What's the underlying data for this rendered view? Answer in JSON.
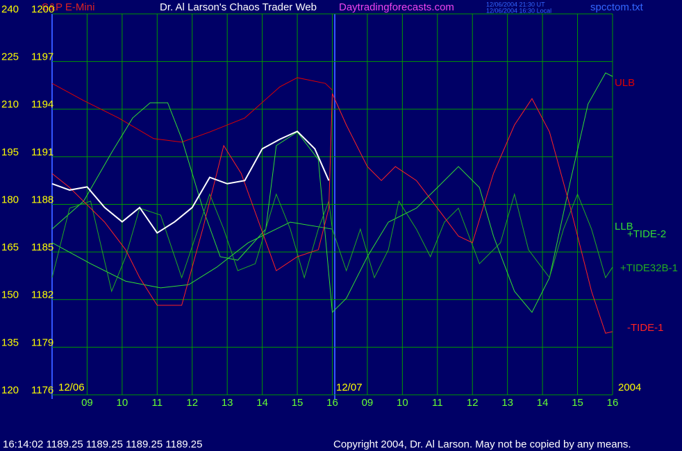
{
  "chart_data": {
    "type": "line",
    "title": "Dr. Al Larson's Chaos Trader Web",
    "symbol": "S&P E-Mini",
    "site": "Daytradingforecasts.com",
    "timestamps": [
      "12/06/2004 21:30 UT",
      "12/06/2004 16:30 Local"
    ],
    "file": "spcctom.txt",
    "dates": [
      "12/06",
      "12/07",
      "2004"
    ],
    "status": "16:14:02  1189.25 1189.25 1189.25 1189.25",
    "copyright": "Copyright 2004, Dr. Al Larson. May not be copied by any means.",
    "grid": true,
    "ylim": [
      120,
      240
    ],
    "yticks": [
      120,
      135,
      150,
      165,
      180,
      195,
      210,
      225,
      240
    ],
    "y2lim": [
      1176,
      1200
    ],
    "y2ticks": [
      1176,
      1179,
      1182,
      1185,
      1188,
      1191,
      1194,
      1197,
      1200
    ],
    "xlim": [
      0,
      16
    ],
    "xticks": [
      {
        "value": 1,
        "label": "09"
      },
      {
        "value": 2,
        "label": "10"
      },
      {
        "value": 3,
        "label": "11"
      },
      {
        "value": 4,
        "label": "12"
      },
      {
        "value": 5,
        "label": "13"
      },
      {
        "value": 6,
        "label": "14"
      },
      {
        "value": 7,
        "label": "15"
      },
      {
        "value": 8,
        "label": "16"
      },
      {
        "value": 9,
        "label": "09"
      },
      {
        "value": 10,
        "label": "10"
      },
      {
        "value": 11,
        "label": "11"
      },
      {
        "value": 12,
        "label": "12"
      },
      {
        "value": 13,
        "label": "13"
      },
      {
        "value": 14,
        "label": "14"
      },
      {
        "value": 15,
        "label": "15"
      },
      {
        "value": 16,
        "label": "16"
      }
    ],
    "price": {
      "axis": "y2",
      "color": "#ffffff",
      "x": [
        0,
        0.5,
        1,
        1.5,
        2,
        2.5,
        3,
        3.5,
        4,
        4.5,
        5,
        5.5,
        6,
        6.5,
        7,
        7.5,
        7.9
      ],
      "values": [
        1189.3,
        1188.9,
        1189.1,
        1187.8,
        1186.9,
        1187.8,
        1186.2,
        1186.9,
        1187.8,
        1189.7,
        1189.3,
        1189.5,
        1191.5,
        1192.1,
        1192.6,
        1191.5,
        1189.5
      ]
    },
    "series": [
      {
        "name": "ULB",
        "color": "#dd0000",
        "x": [
          0,
          0.9,
          1.9,
          2.9,
          3.7,
          4.5,
          5.5,
          6.5,
          7.0,
          7.8,
          8.0
        ],
        "values": [
          218.1,
          212.7,
          207.2,
          200.7,
          199.6,
          202.8,
          207.2,
          217.0,
          219.9,
          218.1,
          216.0
        ]
      },
      {
        "name": "LLB",
        "color": "#33dd33",
        "x": [
          0,
          1.1,
          2.1,
          3.1,
          3.9,
          4.7,
          5.6,
          6.8,
          8.0
        ],
        "values": [
          167.9,
          161.3,
          155.8,
          153.7,
          154.7,
          160.2,
          167.9,
          174.4,
          172.2
        ]
      },
      {
        "name": "+TIDE-2",
        "color": "#33dd33",
        "x": [
          0,
          0.9,
          1.7,
          2.3,
          2.8,
          3.3,
          3.7,
          4.3,
          4.8,
          5.3,
          6.1,
          6.4,
          7.0,
          7.6,
          8.0,
          8.4,
          9.0,
          9.6,
          10.4,
          11.0,
          11.6,
          12.2,
          12.6,
          13.2,
          13.7,
          14.2,
          14.8,
          15.3,
          15.8,
          16.0
        ],
        "values": [
          172.2,
          181.0,
          196.3,
          207.2,
          212.0,
          212.0,
          200.7,
          178.8,
          163.5,
          162.4,
          172.2,
          198.5,
          202.8,
          194.1,
          146.0,
          150.4,
          163.5,
          174.4,
          178.8,
          185.3,
          191.9,
          185.3,
          170.0,
          152.6,
          146.0,
          156.9,
          187.5,
          211.6,
          221.4,
          220.3
        ]
      },
      {
        "name": "+TIDE32B-1",
        "color": "#22aa22",
        "x": [
          0,
          0.5,
          1.1,
          1.7,
          2.1,
          2.5,
          3.1,
          3.7,
          4.1,
          4.5,
          4.9,
          5.3,
          5.8,
          6.4,
          6.8,
          7.2,
          7.6,
          7.9,
          8.0,
          8.4,
          8.8,
          9.2,
          9.6,
          9.9,
          10.4,
          10.8,
          11.2,
          11.6,
          12.2,
          12.8,
          13.2,
          13.6,
          14.2,
          14.6,
          15.0,
          15.4,
          15.8,
          16.0
        ],
        "values": [
          156.9,
          178.8,
          181.0,
          152.6,
          163.5,
          178.8,
          176.6,
          156.9,
          170.0,
          183.2,
          172.2,
          159.1,
          161.3,
          183.2,
          172.2,
          156.9,
          172.2,
          181.0,
          172.2,
          159.1,
          172.2,
          156.9,
          165.7,
          181.0,
          172.2,
          163.5,
          174.4,
          178.8,
          161.3,
          167.9,
          183.2,
          165.7,
          156.9,
          172.2,
          183.2,
          172.2,
          156.9,
          160.2
        ]
      },
      {
        "name": "-TIDE-1",
        "color": "#ff2222",
        "x": [
          0,
          0.5,
          1.5,
          2.1,
          2.5,
          3.0,
          3.7,
          4.3,
          4.9,
          5.4,
          5.9,
          6.4,
          7.0,
          7.6,
          7.9,
          8.0,
          8.4,
          9.0,
          9.4,
          9.8,
          10.4,
          11.0,
          11.6,
          12.0,
          12.6,
          13.2,
          13.7,
          14.2,
          14.8,
          15.4,
          15.8,
          16.0
        ],
        "values": [
          189.7,
          185.3,
          174.4,
          165.7,
          156.9,
          148.2,
          148.2,
          172.2,
          198.5,
          189.7,
          174.4,
          159.1,
          163.5,
          165.7,
          178.8,
          214.9,
          205.0,
          191.9,
          187.5,
          191.9,
          187.5,
          178.8,
          170.0,
          167.9,
          189.7,
          205.0,
          213.3,
          202.8,
          178.8,
          152.6,
          139.4,
          139.9
        ]
      }
    ]
  }
}
